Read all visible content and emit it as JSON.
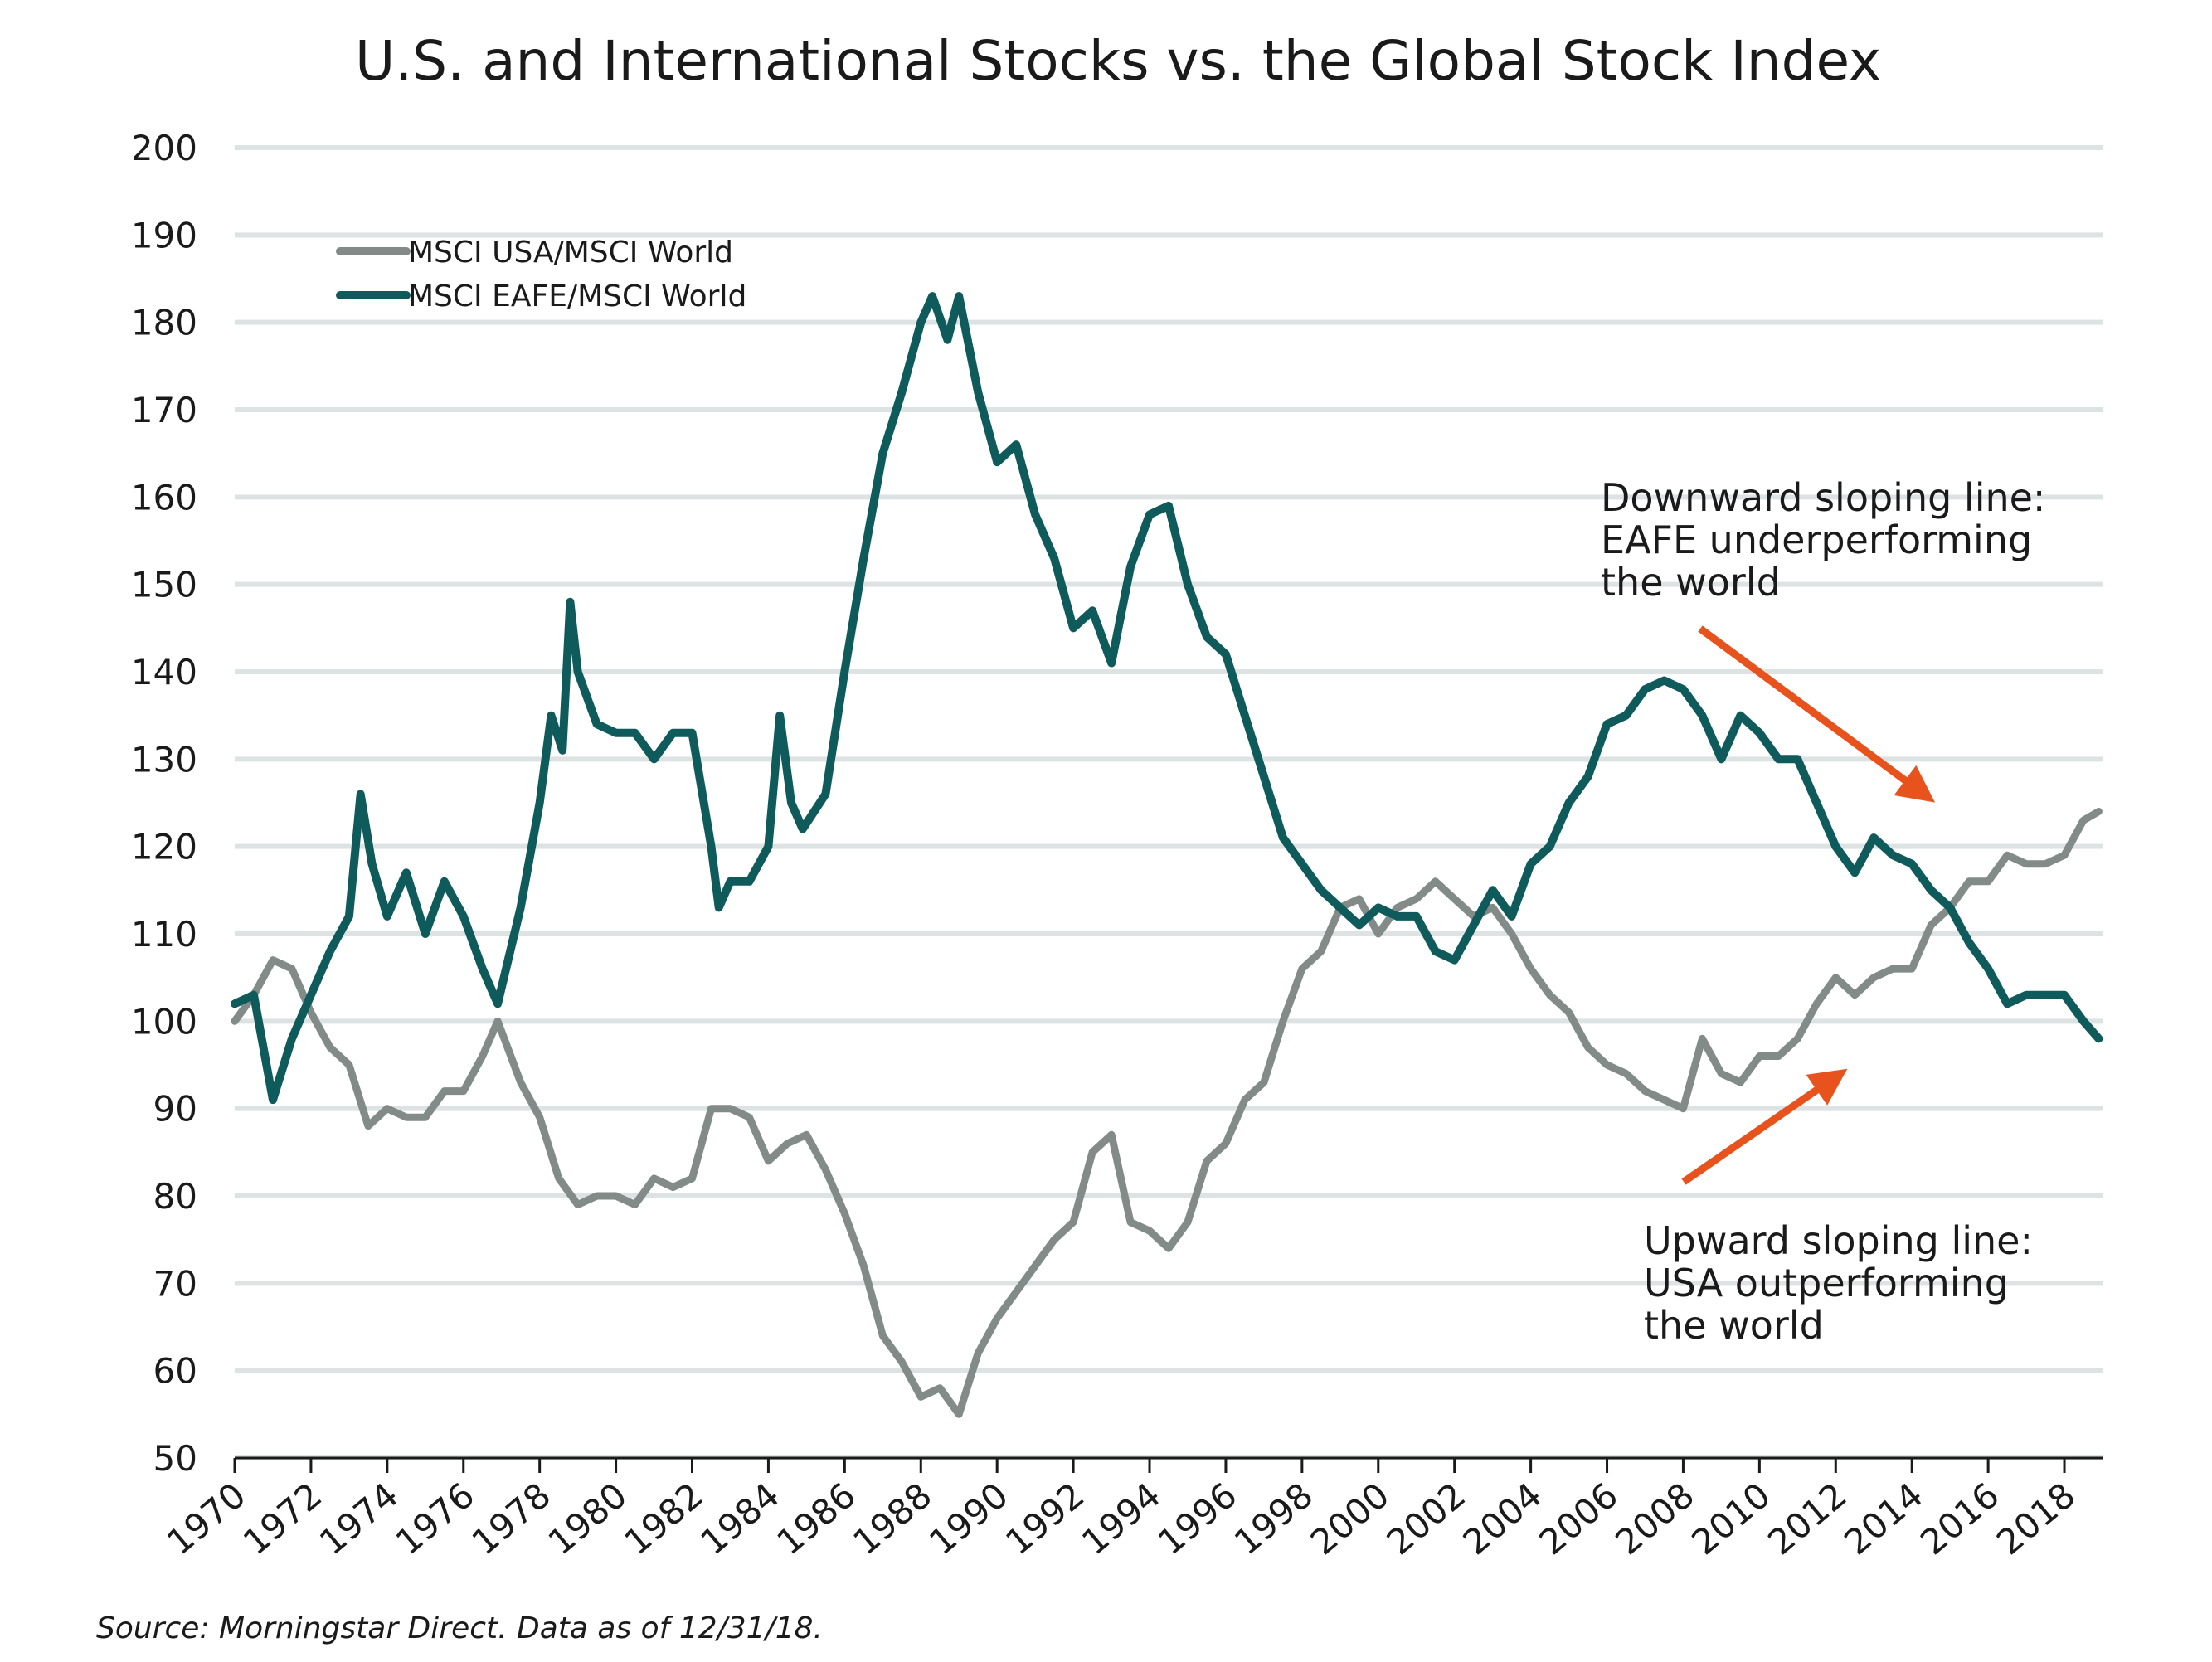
{
  "chart_data": {
    "type": "line",
    "title": "U.S. and International Stocks vs. the Global Stock Index",
    "xlabel": "",
    "ylabel": "",
    "xlim": [
      1970,
      2019
    ],
    "ylim": [
      50,
      200
    ],
    "yticks": [
      "50",
      "60",
      "70",
      "80",
      "90",
      "100",
      "110",
      "120",
      "130",
      "140",
      "150",
      "160",
      "170",
      "180",
      "190",
      "200"
    ],
    "xticks": [
      "1970",
      "1972",
      "1974",
      "1976",
      "1978",
      "1980",
      "1982",
      "1984",
      "1986",
      "1988",
      "1990",
      "1992",
      "1994",
      "1996",
      "1998",
      "2000",
      "2002",
      "2004",
      "2006",
      "2008",
      "2010",
      "2012",
      "2014",
      "2016",
      "2018"
    ],
    "grid": true,
    "legend_placement": "top-left",
    "series": [
      {
        "name": "MSCI USA/MSCI World",
        "color": "#828b88",
        "x": [
          1970.0,
          1970.5,
          1971.0,
          1971.5,
          1972.0,
          1972.5,
          1973.0,
          1973.5,
          1974.0,
          1974.5,
          1975.0,
          1975.5,
          1976.0,
          1976.5,
          1976.9,
          1977.5,
          1978.0,
          1978.5,
          1979.0,
          1979.5,
          1980.0,
          1980.5,
          1981.0,
          1981.5,
          1982.0,
          1982.5,
          1983.0,
          1983.5,
          1984.0,
          1984.5,
          1985.0,
          1985.5,
          1986.0,
          1986.5,
          1987.0,
          1987.5,
          1988.0,
          1988.5,
          1989.0,
          1989.5,
          1990.0,
          1990.5,
          1991.0,
          1991.5,
          1992.0,
          1992.5,
          1993.0,
          1993.5,
          1994.0,
          1994.5,
          1995.0,
          1995.5,
          1996.0,
          1996.5,
          1997.0,
          1997.5,
          1998.0,
          1998.5,
          1999.0,
          1999.5,
          2000.0,
          2000.5,
          2001.0,
          2001.5,
          2002.0,
          2002.5,
          2003.0,
          2003.5,
          2004.0,
          2004.5,
          2005.0,
          2005.5,
          2006.0,
          2006.5,
          2007.0,
          2007.5,
          2008.0,
          2008.5,
          2009.0,
          2009.5,
          2010.0,
          2010.5,
          2011.0,
          2011.5,
          2012.0,
          2012.5,
          2013.0,
          2013.5,
          2014.0,
          2014.5,
          2015.0,
          2015.5,
          2016.0,
          2016.5,
          2017.0,
          2017.5,
          2018.0,
          2018.5,
          2018.9
        ],
        "values": [
          100,
          103,
          107,
          106,
          101,
          97,
          95,
          88,
          90,
          89,
          89,
          92,
          92,
          96,
          100,
          93,
          89,
          82,
          79,
          80,
          80,
          79,
          82,
          81,
          82,
          90,
          90,
          89,
          84,
          86,
          87,
          83,
          78,
          72,
          64,
          61,
          57,
          58,
          55,
          62,
          66,
          69,
          72,
          75,
          77,
          85,
          87,
          77,
          76,
          74,
          77,
          84,
          86,
          91,
          93,
          100,
          106,
          108,
          113,
          114,
          110,
          113,
          114,
          116,
          114,
          112,
          113,
          110,
          106,
          103,
          101,
          97,
          95,
          94,
          92,
          91,
          90,
          98,
          94,
          93,
          96,
          96,
          98,
          102,
          105,
          103,
          105,
          106,
          106,
          111,
          113,
          116,
          116,
          119,
          118,
          118,
          119,
          123,
          124
        ]
      },
      {
        "name": "MSCI EAFE/MSCI World",
        "color": "#0f5b5b",
        "x": [
          1970.0,
          1970.5,
          1971.0,
          1971.5,
          1972.0,
          1972.5,
          1973.0,
          1973.3,
          1973.6,
          1974.0,
          1974.5,
          1975.0,
          1975.5,
          1976.0,
          1976.5,
          1976.9,
          1977.5,
          1978.0,
          1978.3,
          1978.6,
          1978.8,
          1979.0,
          1979.5,
          1980.0,
          1980.5,
          1981.0,
          1981.5,
          1982.0,
          1982.5,
          1982.7,
          1983.0,
          1983.5,
          1984.0,
          1984.3,
          1984.6,
          1984.9,
          1985.5,
          1986.0,
          1986.5,
          1987.0,
          1987.5,
          1988.0,
          1988.3,
          1988.7,
          1989.0,
          1989.5,
          1990.0,
          1990.5,
          1991.0,
          1991.5,
          1992.0,
          1992.5,
          1993.0,
          1993.5,
          1994.0,
          1994.5,
          1995.0,
          1995.5,
          1996.0,
          1996.5,
          1997.0,
          1997.5,
          1998.0,
          1998.5,
          1999.0,
          1999.5,
          2000.0,
          2000.5,
          2001.0,
          2001.5,
          2002.0,
          2002.5,
          2003.0,
          2003.5,
          2004.0,
          2004.5,
          2005.0,
          2005.5,
          2006.0,
          2006.5,
          2007.0,
          2007.5,
          2008.0,
          2008.5,
          2009.0,
          2009.5,
          2010.0,
          2010.5,
          2011.0,
          2011.5,
          2012.0,
          2012.5,
          2013.0,
          2013.5,
          2014.0,
          2014.5,
          2015.0,
          2015.5,
          2016.0,
          2016.5,
          2017.0,
          2017.5,
          2018.0,
          2018.5,
          2018.9
        ],
        "values": [
          102,
          103,
          91,
          98,
          103,
          108,
          112,
          126,
          118,
          112,
          117,
          110,
          116,
          112,
          106,
          102,
          113,
          125,
          135,
          131,
          148,
          140,
          134,
          133,
          133,
          130,
          133,
          133,
          120,
          113,
          116,
          116,
          120,
          135,
          125,
          122,
          126,
          140,
          153,
          165,
          172,
          180,
          183,
          178,
          183,
          172,
          164,
          166,
          158,
          153,
          145,
          147,
          141,
          152,
          158,
          159,
          150,
          144,
          142,
          135,
          128,
          121,
          118,
          115,
          113,
          111,
          113,
          112,
          112,
          108,
          107,
          111,
          115,
          112,
          118,
          120,
          125,
          128,
          134,
          135,
          138,
          139,
          138,
          135,
          130,
          135,
          133,
          130,
          130,
          125,
          120,
          117,
          121,
          119,
          118,
          115,
          113,
          109,
          106,
          102,
          103,
          103,
          103,
          100,
          98
        ]
      }
    ],
    "annotations": [
      {
        "lines": [
          "Downward sloping line:",
          "EAFE underperforming",
          "the world"
        ]
      },
      {
        "lines": [
          "Upward sloping line:",
          "USA outperforming",
          "the world"
        ]
      }
    ],
    "arrow_color": "#e8521d"
  },
  "footer": {
    "source": "Source: Morningstar Direct. Data as of 12/31/18."
  }
}
